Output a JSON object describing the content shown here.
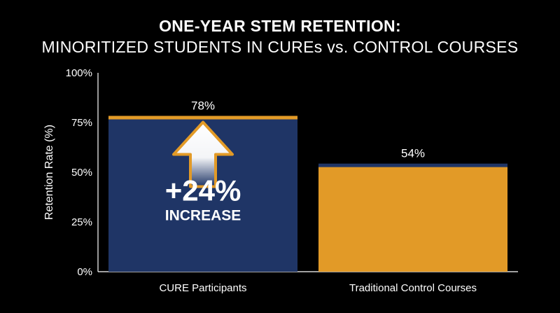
{
  "chart_data": {
    "type": "bar",
    "title": "ONE-YEAR STEM RETENTION:",
    "subtitle": "MINORITIZED STUDENTS IN CUREs vs. CONTROL COURSES",
    "ylabel": "Retention Rate (%)",
    "xlabel": "",
    "ylim": [
      0,
      100
    ],
    "yticks": [
      {
        "value": 0,
        "label": "0%"
      },
      {
        "value": 25,
        "label": "25%"
      },
      {
        "value": 50,
        "label": "50%"
      },
      {
        "value": 75,
        "label": "75%"
      },
      {
        "value": 100,
        "label": "100%"
      }
    ],
    "categories": [
      "CURE Participants",
      "Traditional Control Courses"
    ],
    "values": [
      78,
      54
    ],
    "data_labels": [
      "78%",
      "54%"
    ],
    "bar_colors": [
      "#1f3566",
      "#e29a27"
    ],
    "top_edge_colors": [
      "#e29a27",
      "#1f3566"
    ],
    "annotation": {
      "text_line1": "+24%",
      "text_line2": "INCREASE",
      "arrow_outline_color": "#e29a27",
      "icon": "up-arrow-icon"
    },
    "background": "#000000",
    "axis_color": "#ffffff",
    "grid": false
  }
}
